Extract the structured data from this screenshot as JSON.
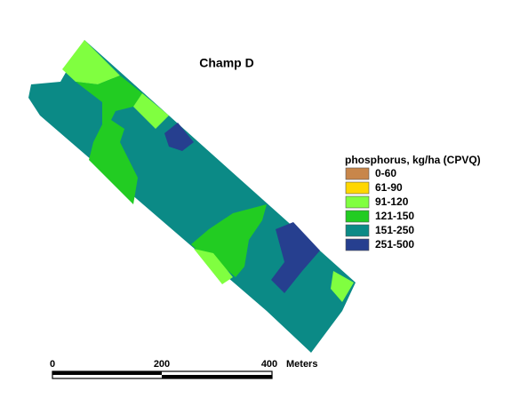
{
  "title": "Champ D",
  "legend": {
    "title": "phosphorus, kg/ha (CPVQ)",
    "items": [
      {
        "label": "0-60",
        "color": "#c8864a"
      },
      {
        "label": "61-90",
        "color": "#ffd700"
      },
      {
        "label": "91-120",
        "color": "#80ff40"
      },
      {
        "label": "121-150",
        "color": "#22cc22"
      },
      {
        "label": "151-250",
        "color": "#0b8a86"
      },
      {
        "label": "251-500",
        "color": "#263f8f"
      }
    ]
  },
  "scale_bar": {
    "labels": [
      "0",
      "200",
      "400"
    ],
    "unit": "Meters"
  }
}
